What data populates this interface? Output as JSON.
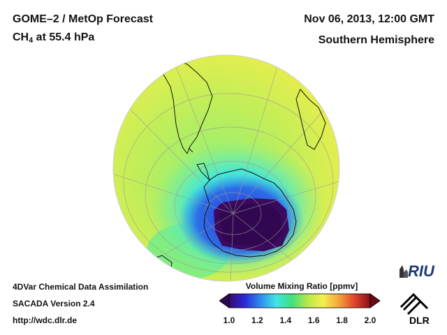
{
  "header": {
    "title_line1": "GOME–2 / MetOp Forecast",
    "species_main": "CH",
    "species_sub": "4",
    "species_rest": " at 55.4 hPa",
    "datetime": "Nov 06, 2013, 12:00 GMT",
    "region": "Southern Hemisphere"
  },
  "footer": {
    "line1": "4DVar Chemical Data Assimilation",
    "line2": "SACADA Version 2.4",
    "line3": "http://wdc.dlr.de"
  },
  "colorbar": {
    "title": "Volume Mixing Ratio [ppmv]",
    "min": 1.0,
    "max": 2.0,
    "ticks": [
      "1.0",
      "1.2",
      "1.4",
      "1.6",
      "1.8",
      "2.0"
    ],
    "colors": [
      "#3a0a6e",
      "#2a2ad8",
      "#2d8cf0",
      "#3ee6e6",
      "#3ee07a",
      "#b8e84a",
      "#f4f04a",
      "#f4a43a",
      "#e0452a",
      "#8a0e1a"
    ]
  },
  "logos": {
    "riu_text": "RIU",
    "dlr_text": "DLR"
  },
  "map": {
    "projection": "orthographic",
    "hemisphere": "south",
    "background_value_color": "#e6ec4c",
    "min_region_color": "#3a0a5e"
  }
}
